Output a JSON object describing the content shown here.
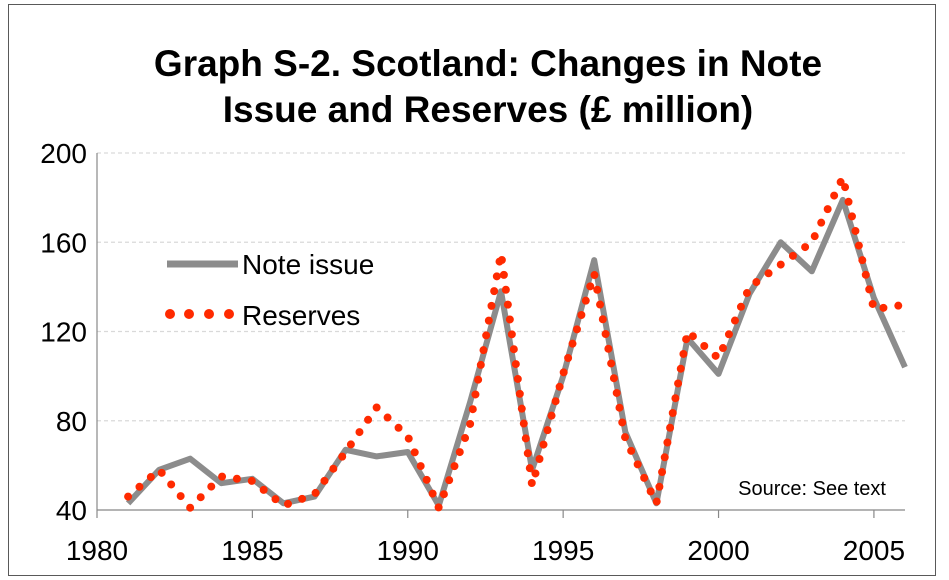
{
  "chart_data": {
    "type": "line",
    "title_line1": "Graph S-2. Scotland: Changes in Note",
    "title_line2": "Issue and Reserves (£ million)",
    "xlabel": "",
    "ylabel": "",
    "xlim": [
      1980,
      2006
    ],
    "ylim": [
      40,
      200
    ],
    "x_ticks": [
      "1980",
      "1985",
      "1990",
      "1995",
      "2000",
      "2005"
    ],
    "y_ticks": [
      "40",
      "80",
      "120",
      "160",
      "200"
    ],
    "grid": "horizontal dashed",
    "legend_position": "upper-left",
    "annotation": "Source: See text",
    "series": [
      {
        "name": "Note issue",
        "style": "solid",
        "color": "#8c8c8c",
        "x": [
          1981,
          1982,
          1983,
          1984,
          1985,
          1986,
          1987,
          1988,
          1989,
          1990,
          1991,
          1992,
          1993,
          1994,
          1995,
          1996,
          1997,
          1998,
          1999,
          2000,
          2001,
          2002,
          2003,
          2004,
          2005,
          2006
        ],
        "values": [
          43,
          58,
          63,
          52,
          54,
          43,
          46,
          67,
          64,
          66,
          42,
          88,
          138,
          58,
          100,
          152,
          75,
          43,
          117,
          101,
          137,
          160,
          147,
          179,
          135,
          104
        ]
      },
      {
        "name": "Reserves",
        "style": "dotted",
        "color": "#ff2a00",
        "x": [
          1981,
          1982,
          1983,
          1984,
          1985,
          1986,
          1987,
          1988,
          1989,
          1990,
          1991,
          1992,
          1993,
          1994,
          1995,
          1996,
          1997,
          1998,
          1999,
          2000,
          2001,
          2002,
          2003,
          2004,
          2005,
          2006
        ],
        "values": [
          46,
          58,
          41,
          55,
          53,
          42,
          47,
          66,
          86,
          73,
          41,
          78,
          155,
          51,
          101,
          146,
          72,
          43,
          120,
          108,
          140,
          150,
          160,
          189,
          130,
          132
        ]
      }
    ]
  }
}
